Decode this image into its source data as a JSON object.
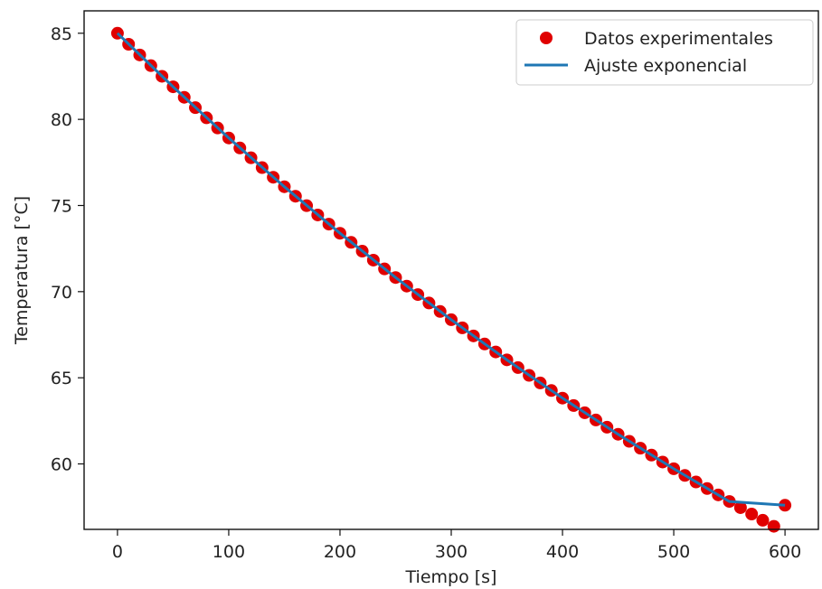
{
  "chart_data": {
    "type": "scatter",
    "title": "",
    "xlabel": "Tiempo [s]",
    "ylabel": "Temperatura [°C]",
    "xlim": [
      -30,
      630
    ],
    "ylim": [
      56.2,
      86.3
    ],
    "xticks": [
      0,
      100,
      200,
      300,
      400,
      500,
      600
    ],
    "yticks": [
      60,
      65,
      70,
      75,
      80,
      85
    ],
    "grid": false,
    "legend_position": "top-right",
    "series": [
      {
        "name": "Datos experimentales",
        "kind": "scatter",
        "color": "#e00000",
        "x": [
          0,
          10,
          20,
          30,
          40,
          50,
          60,
          70,
          80,
          90,
          100,
          110,
          120,
          130,
          140,
          150,
          160,
          170,
          180,
          190,
          200,
          210,
          220,
          230,
          240,
          250,
          260,
          270,
          280,
          290,
          300,
          310,
          320,
          330,
          340,
          350,
          360,
          370,
          380,
          390,
          400,
          410,
          420,
          430,
          440,
          450,
          460,
          470,
          480,
          490,
          500,
          510,
          520,
          530,
          540,
          550,
          560,
          570,
          580,
          590,
          600
        ],
        "y": [
          85.0,
          84.36,
          83.74,
          83.12,
          82.5,
          81.89,
          81.28,
          80.68,
          80.09,
          79.5,
          78.92,
          78.34,
          77.77,
          77.2,
          76.64,
          76.09,
          75.54,
          74.99,
          74.45,
          73.92,
          73.39,
          72.86,
          72.35,
          71.83,
          71.32,
          70.82,
          70.32,
          69.83,
          69.34,
          68.85,
          68.37,
          67.9,
          67.43,
          66.96,
          66.5,
          66.04,
          65.59,
          65.14,
          64.7,
          64.26,
          63.82,
          63.39,
          62.97,
          62.55,
          62.13,
          61.72,
          61.31,
          60.91,
          60.51,
          60.11,
          59.72,
          59.33,
          58.95,
          58.57,
          58.2,
          57.82,
          57.46,
          57.09,
          56.73,
          56.38,
          57.6
        ]
      },
      {
        "name": "Ajuste exponencial",
        "kind": "line",
        "color": "#1f77b4",
        "x": [
          0,
          50,
          100,
          150,
          200,
          250,
          300,
          350,
          400,
          450,
          500,
          550,
          600
        ],
        "y": [
          85.0,
          81.89,
          78.92,
          76.09,
          73.39,
          70.82,
          68.37,
          66.04,
          63.82,
          61.72,
          59.72,
          57.82,
          57.6
        ]
      }
    ]
  }
}
